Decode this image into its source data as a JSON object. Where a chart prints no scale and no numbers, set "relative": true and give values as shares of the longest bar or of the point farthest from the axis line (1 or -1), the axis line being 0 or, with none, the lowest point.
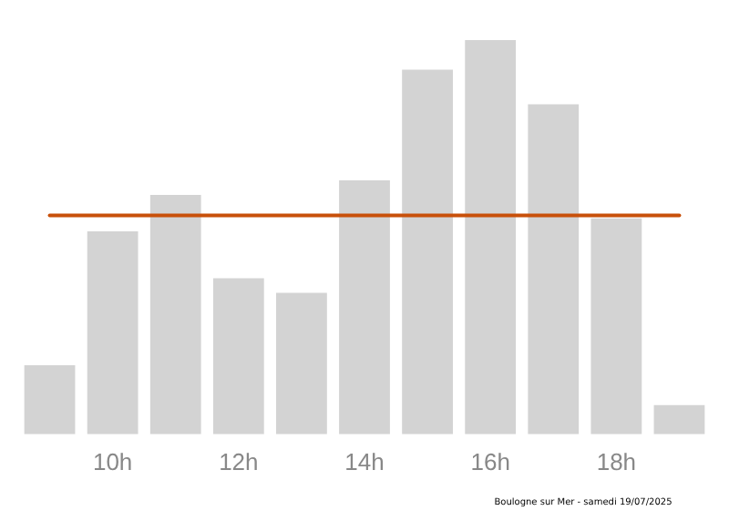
{
  "chart_data": {
    "type": "bar",
    "relative": true,
    "categories": [
      null,
      "10h",
      null,
      "12h",
      null,
      "14h",
      null,
      "16h",
      null,
      "18h",
      null
    ],
    "values": [
      0.175,
      0.515,
      0.607,
      0.396,
      0.359,
      0.644,
      0.925,
      1,
      0.837,
      0.548,
      0.074
    ],
    "color": "#d3d3d3",
    "ref_lines": [
      {
        "axis": "y",
        "value": 0.555,
        "color": "#c8500a"
      }
    ],
    "annotations": [
      "Boulogne sur Mer - samedi 19/07/2025"
    ],
    "grid": false,
    "legend": false
  }
}
